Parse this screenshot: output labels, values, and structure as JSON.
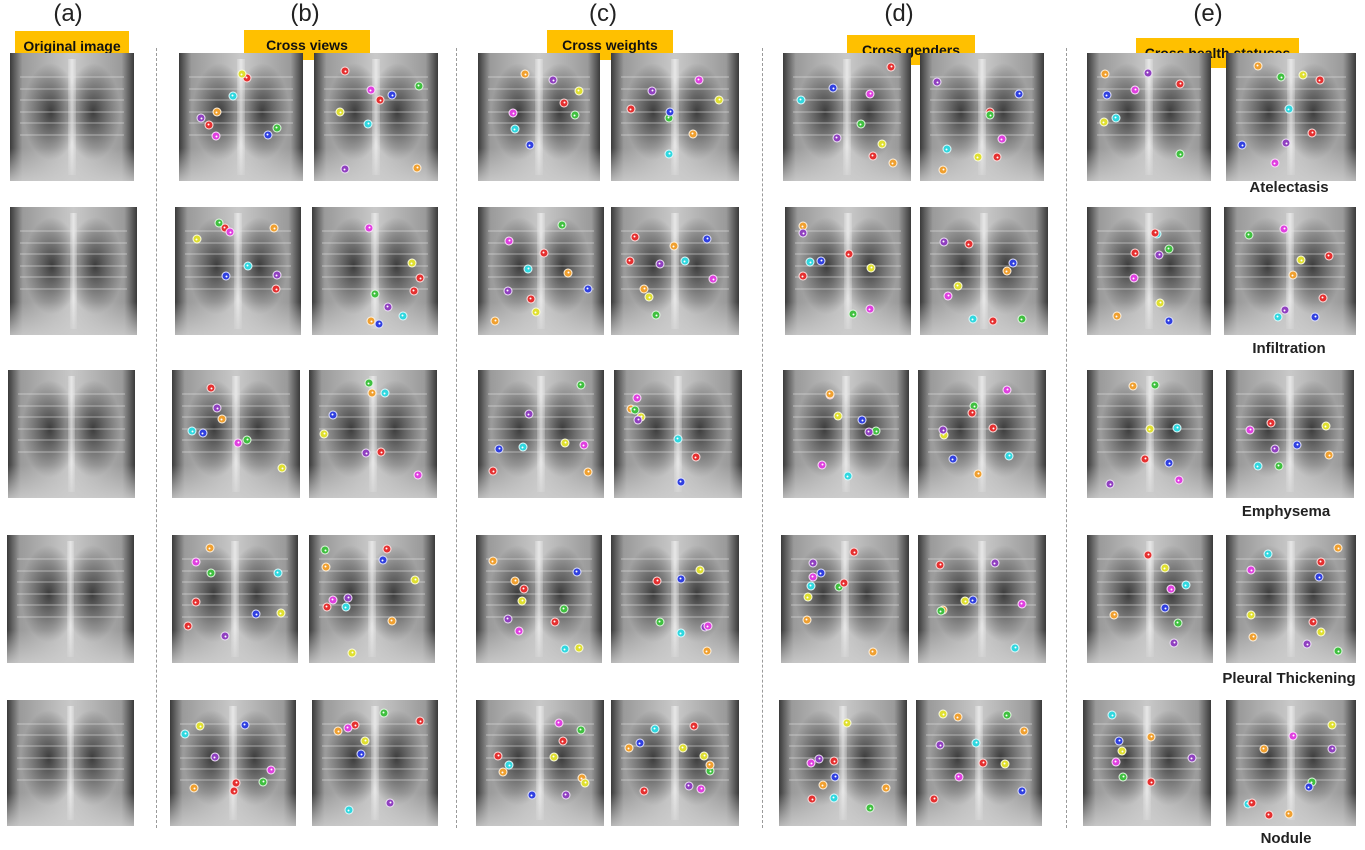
{
  "columns": [
    {
      "letter": "(a)",
      "tag": "Original image"
    },
    {
      "letter": "(b)",
      "tag": "Cross views"
    },
    {
      "letter": "(c)",
      "tag": "Cross weights"
    },
    {
      "letter": "(d)",
      "tag": "Cross genders"
    },
    {
      "letter": "(e)",
      "tag": "Cross health statuses"
    }
  ],
  "diseases": [
    "Atelectasis",
    "Infiltration",
    "Emphysema",
    "Pleural Thickening",
    "Nodule"
  ],
  "landmark_colors": {
    "red": "#e53030",
    "orange": "#f0a030",
    "yellow": "#e0e030",
    "green": "#40c040",
    "cyan": "#30d8e0",
    "blue": "#3040e0",
    "purple": "#9040c0",
    "magenta": "#e040e0"
  }
}
